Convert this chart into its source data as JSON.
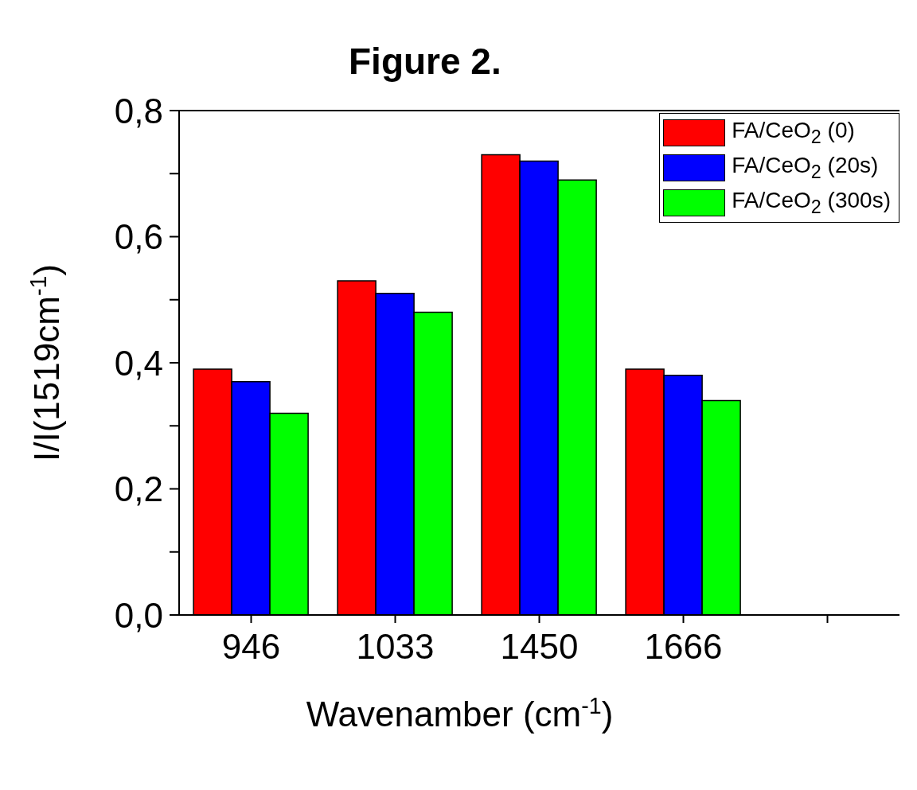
{
  "chart_data": {
    "type": "bar",
    "title": "Figure 2.",
    "xlabel": "Wavenamber (cm$^{-1}$)",
    "ylabel": "I/I(1519cm$^{-1}$)",
    "categories": [
      "946",
      "1033",
      "1450",
      "1666",
      null
    ],
    "series": [
      {
        "name": "FA/CeO$_{2}$ (0)",
        "color": "#ff0000",
        "values": [
          0.39,
          0.53,
          0.73,
          0.39,
          null
        ]
      },
      {
        "name": "FA/CeO$_{2}$ (20s)",
        "color": "#0000ff",
        "values": [
          0.37,
          0.51,
          0.72,
          0.38,
          null
        ]
      },
      {
        "name": "FA/CeO$_{2}$ (300s)",
        "color": "#00ff00",
        "values": [
          0.32,
          0.48,
          0.69,
          0.34,
          null
        ]
      }
    ],
    "ylim": [
      0,
      0.8
    ],
    "yticks": [
      {
        "value": 0,
        "label": "0,0"
      },
      {
        "value": 0.1,
        "label": null
      },
      {
        "value": 0.2,
        "label": "0,2"
      },
      {
        "value": 0.3,
        "label": null
      },
      {
        "value": 0.4,
        "label": "0,4"
      },
      {
        "value": 0.5,
        "label": null
      },
      {
        "value": 0.6,
        "label": "0,6"
      },
      {
        "value": 0.7,
        "label": null
      },
      {
        "value": 0.8,
        "label": "0,8"
      }
    ],
    "grid": false,
    "legend": "top right"
  }
}
